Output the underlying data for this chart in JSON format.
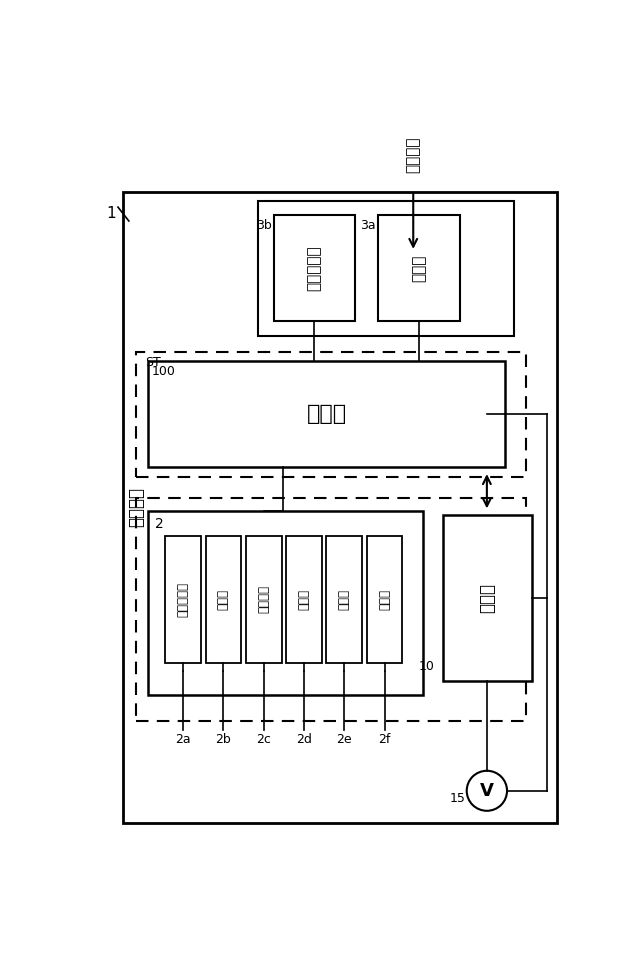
{
  "bg_color": "#ffffff",
  "lc": "#000000",
  "fig_w": 6.4,
  "fig_h": 9.56,
  "printer_label": "プリンタ",
  "instr_label": "印刷指示",
  "label_3a": "3a",
  "label_3b": "3b",
  "label_3a_text": "通信部",
  "label_3b_text": "画像メモリ",
  "label_ST": "ST",
  "label_100": "100",
  "label_100_text": "制御部",
  "label_2": "2",
  "comp_labels": [
    "感光ドラム",
    "帯電器",
    "露光装置",
    "現像器",
    "転写器",
    "定着器"
  ],
  "comp_ids": [
    "2a",
    "2b",
    "2c",
    "2d",
    "2e",
    "2f"
  ],
  "label_10": "10",
  "label_10_text": "電源部",
  "label_15": "15",
  "label_1": "1",
  "voltmeter_V": "V"
}
